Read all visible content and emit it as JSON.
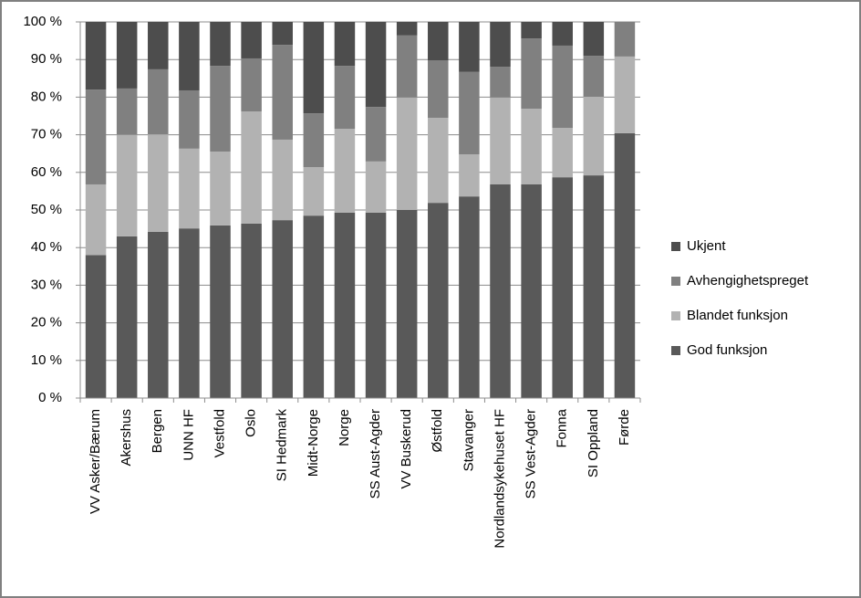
{
  "chart_data": {
    "type": "stacked_bar",
    "categories": [
      "VV Asker/Bærum",
      "Akershus",
      "Bergen",
      "UNN HF",
      "Vestfold",
      "Oslo",
      "SI Hedmark",
      "Midt-Norge",
      "Norge",
      "SS Aust-Agder",
      "VV Buskerud",
      "Østfold",
      "Stavanger",
      "Nordlandsykehuset HF",
      "SS Vest-Agder",
      "Fonna",
      "SI Oppland",
      "Førde"
    ],
    "series": [
      {
        "name": "God funksjon",
        "color": "#595959",
        "values": [
          38,
          43,
          44.2,
          45.1,
          45.9,
          46.4,
          47.3,
          48.5,
          49.3,
          49.3,
          50,
          51.9,
          53.6,
          56.8,
          56.8,
          58.7,
          59.2,
          70.4
        ]
      },
      {
        "name": "Blandet funksjon",
        "color": "#b2b2b2",
        "values": [
          18.8,
          27,
          25.9,
          21.2,
          19.6,
          29.8,
          21.4,
          12.9,
          22.3,
          13.6,
          29.9,
          22.6,
          11.2,
          23.1,
          20.1,
          13.1,
          20.9,
          20.4
        ]
      },
      {
        "name": "Avhengighetspreget",
        "color": "#808080",
        "values": [
          25.2,
          12.3,
          17.3,
          15.5,
          22.8,
          14.1,
          25.2,
          14.3,
          16.7,
          14.5,
          16.5,
          15.3,
          21.9,
          8.2,
          18.7,
          21.9,
          10.9,
          9.2
        ]
      },
      {
        "name": "Ukjent",
        "color": "#4d4d4d",
        "values": [
          18,
          17.7,
          12.6,
          18.2,
          11.7,
          9.7,
          6.1,
          24.3,
          11.7,
          22.6,
          3.6,
          10.2,
          13.3,
          11.9,
          4.4,
          6.3,
          9,
          0
        ]
      }
    ],
    "ylim": [
      0,
      100
    ],
    "yticks": [
      {
        "value": 0,
        "label": "0 %"
      },
      {
        "value": 10,
        "label": "10 %"
      },
      {
        "value": 20,
        "label": "20 %"
      },
      {
        "value": 30,
        "label": "30 %"
      },
      {
        "value": 40,
        "label": "40 %"
      },
      {
        "value": 50,
        "label": "50 %"
      },
      {
        "value": 60,
        "label": "60 %"
      },
      {
        "value": 70,
        "label": "70 %"
      },
      {
        "value": 80,
        "label": "80 %"
      },
      {
        "value": 90,
        "label": "90 %"
      },
      {
        "value": 100,
        "label": "100 %"
      }
    ],
    "grid": true,
    "legend": "right"
  }
}
